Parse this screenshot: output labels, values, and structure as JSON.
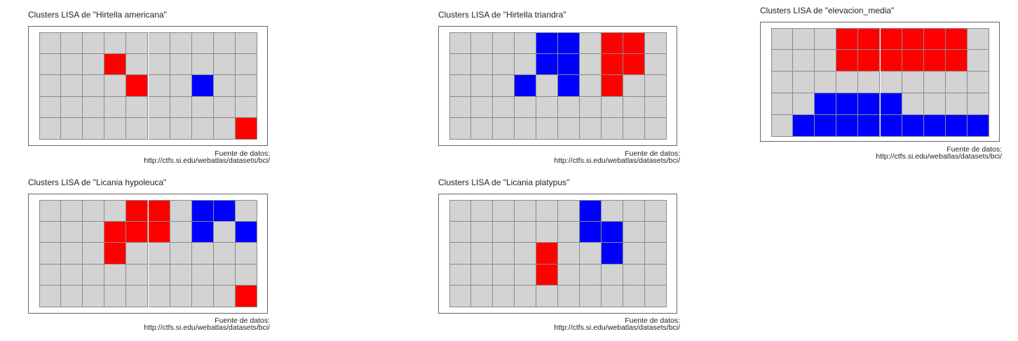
{
  "colors": {
    "none": "#d3d3d3",
    "high": "#ff0000",
    "low": "#0000ff",
    "gridline": "#8a8a8a",
    "frame": "#666666"
  },
  "source": {
    "line1": "Fuente de datos:",
    "line2": "http://ctfs.si.edu/webatlas/datasets/bci/"
  },
  "chart_data": [
    {
      "type": "heatmap",
      "title": "Clusters LISA de \"Hirtella americana\"",
      "rows": 5,
      "cols": 10,
      "legend": {
        "0": "none",
        "1": "high",
        "2": "low"
      },
      "values": [
        [
          0,
          0,
          0,
          0,
          0,
          0,
          0,
          0,
          0,
          0
        ],
        [
          0,
          0,
          0,
          1,
          0,
          0,
          0,
          0,
          0,
          0
        ],
        [
          0,
          0,
          0,
          0,
          1,
          0,
          0,
          2,
          0,
          0
        ],
        [
          0,
          0,
          0,
          0,
          0,
          0,
          0,
          0,
          0,
          0
        ],
        [
          0,
          0,
          0,
          0,
          0,
          0,
          0,
          0,
          0,
          1
        ]
      ]
    },
    {
      "type": "heatmap",
      "title": "Clusters LISA de \"Hirtella triandra\"",
      "rows": 5,
      "cols": 10,
      "legend": {
        "0": "none",
        "1": "high",
        "2": "low"
      },
      "values": [
        [
          0,
          0,
          0,
          0,
          2,
          2,
          0,
          1,
          1,
          0
        ],
        [
          0,
          0,
          0,
          0,
          2,
          2,
          0,
          1,
          1,
          0
        ],
        [
          0,
          0,
          0,
          2,
          0,
          2,
          0,
          1,
          0,
          0
        ],
        [
          0,
          0,
          0,
          0,
          0,
          0,
          0,
          0,
          0,
          0
        ],
        [
          0,
          0,
          0,
          0,
          0,
          0,
          0,
          0,
          0,
          0
        ]
      ]
    },
    {
      "type": "heatmap",
      "title": "Clusters LISA de \"elevacion_media\"",
      "rows": 5,
      "cols": 10,
      "legend": {
        "0": "none",
        "1": "high",
        "2": "low"
      },
      "values": [
        [
          0,
          0,
          0,
          1,
          1,
          1,
          1,
          1,
          1,
          0
        ],
        [
          0,
          0,
          0,
          1,
          1,
          1,
          1,
          1,
          1,
          0
        ],
        [
          0,
          0,
          0,
          0,
          0,
          0,
          0,
          0,
          0,
          0
        ],
        [
          0,
          0,
          2,
          2,
          2,
          2,
          0,
          0,
          0,
          0
        ],
        [
          0,
          2,
          2,
          2,
          2,
          2,
          2,
          2,
          2,
          2
        ]
      ]
    },
    {
      "type": "heatmap",
      "title": "Clusters LISA de \"Licania hypoleuca\"",
      "rows": 5,
      "cols": 10,
      "legend": {
        "0": "none",
        "1": "high",
        "2": "low"
      },
      "values": [
        [
          0,
          0,
          0,
          0,
          1,
          1,
          0,
          2,
          2,
          0
        ],
        [
          0,
          0,
          0,
          1,
          1,
          1,
          0,
          2,
          0,
          2
        ],
        [
          0,
          0,
          0,
          1,
          0,
          0,
          0,
          0,
          0,
          0
        ],
        [
          0,
          0,
          0,
          0,
          0,
          0,
          0,
          0,
          0,
          0
        ],
        [
          0,
          0,
          0,
          0,
          0,
          0,
          0,
          0,
          0,
          1
        ]
      ]
    },
    {
      "type": "heatmap",
      "title": "Clusters LISA de \"Licania platypus\"",
      "rows": 5,
      "cols": 10,
      "legend": {
        "0": "none",
        "1": "high",
        "2": "low"
      },
      "values": [
        [
          0,
          0,
          0,
          0,
          0,
          0,
          2,
          0,
          0,
          0
        ],
        [
          0,
          0,
          0,
          0,
          0,
          0,
          2,
          2,
          0,
          0
        ],
        [
          0,
          0,
          0,
          0,
          1,
          0,
          0,
          2,
          0,
          0
        ],
        [
          0,
          0,
          0,
          0,
          1,
          0,
          0,
          0,
          0,
          0
        ],
        [
          0,
          0,
          0,
          0,
          0,
          0,
          0,
          0,
          0,
          0
        ]
      ]
    }
  ]
}
